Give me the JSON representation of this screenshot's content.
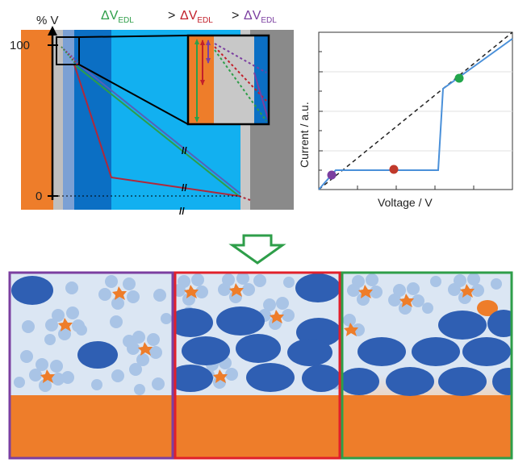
{
  "top_left": {
    "y_axis_title": "% V",
    "tick_100": "100",
    "tick_0": "0",
    "legend": {
      "delta": "ΔV",
      "subscript": "EDL",
      "separator": ">",
      "colors": [
        "#2e9e49",
        "#c2202b",
        "#7b3fa0"
      ]
    }
  },
  "top_right": {
    "y_label": "Current / a.u.",
    "x_label": "Voltage / V",
    "marker_colors": [
      "#7b3fa0",
      "#c0392b",
      "#22a64b"
    ],
    "line_color": "#4a90d9"
  },
  "bottom": {
    "panel_border_colors": [
      "#7b3fa0",
      "#e0202b",
      "#2e9e49"
    ],
    "electrode_color": "#ee7d2a",
    "electrolyte_color": "#dbe6f3",
    "ion_color": "#2f5fb3",
    "solvent_color": "#a9c4e6"
  }
}
